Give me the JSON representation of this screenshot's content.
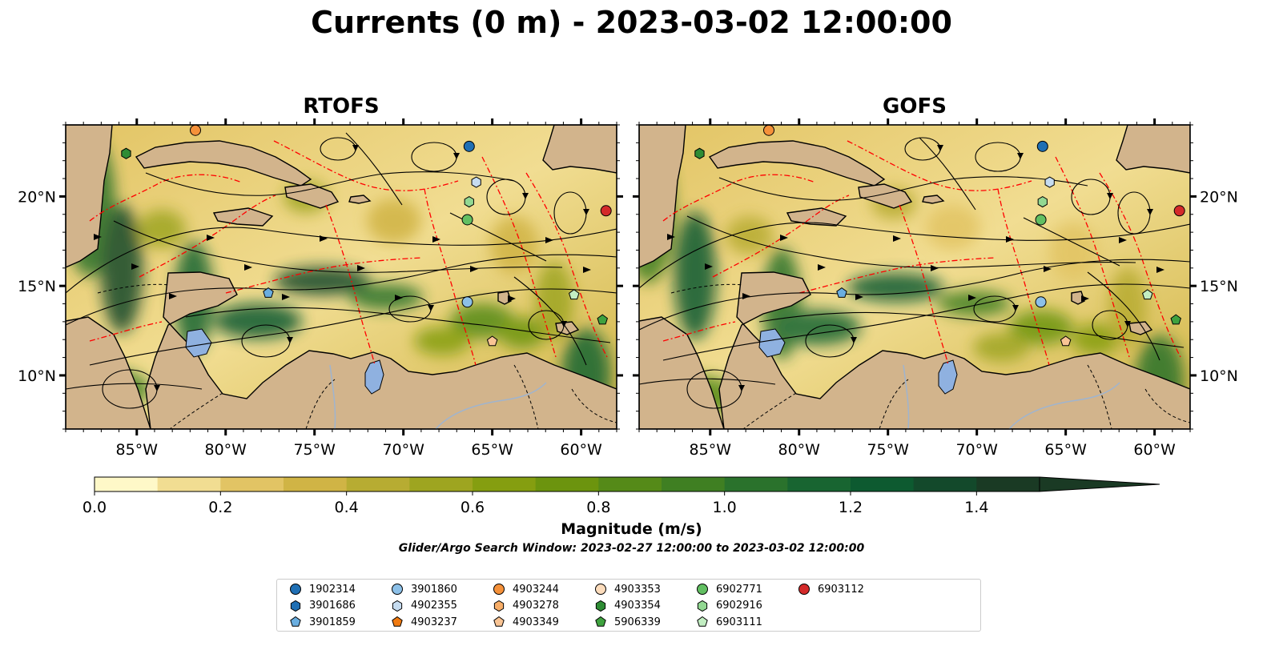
{
  "title": "Currents (0 m) - 2023-03-02 12:00:00",
  "panels": [
    {
      "id": "rtofs",
      "title": "RTOFS"
    },
    {
      "id": "gofs",
      "title": "GOFS"
    }
  ],
  "map_extent": {
    "lon": [
      -89.0,
      -58.0
    ],
    "lat": [
      7.0,
      24.0
    ]
  },
  "lon_ticks": [
    {
      "value": -85,
      "label": "85°W"
    },
    {
      "value": -80,
      "label": "80°W"
    },
    {
      "value": -75,
      "label": "75°W"
    },
    {
      "value": -70,
      "label": "70°W"
    },
    {
      "value": -65,
      "label": "65°W"
    },
    {
      "value": -60,
      "label": "60°W"
    }
  ],
  "lat_ticks": [
    {
      "value": 10,
      "label": "10°N"
    },
    {
      "value": 15,
      "label": "15°N"
    },
    {
      "value": 20,
      "label": "20°N"
    }
  ],
  "colors": {
    "land": "#d2b48c",
    "lake": "#8fb1e0",
    "eez_line": "#ff0000",
    "streamline": "#000000"
  },
  "colorbar": {
    "label": "Magnitude (m/s)",
    "min": 0.0,
    "max": 1.5,
    "step": 0.1,
    "extend": "max",
    "colors": [
      "#fef8c8",
      "#f1dd92",
      "#e2c464",
      "#d0b445",
      "#b7ac32",
      "#9ea520",
      "#859e10",
      "#6c940e",
      "#558a18",
      "#3f7f22",
      "#2a722c",
      "#186531",
      "#0d5a30",
      "#13492b",
      "#1a3a24"
    ],
    "ticks": [
      {
        "value": 0.0,
        "label": "0.0"
      },
      {
        "value": 0.2,
        "label": "0.2"
      },
      {
        "value": 0.4,
        "label": "0.4"
      },
      {
        "value": 0.6,
        "label": "0.6"
      },
      {
        "value": 0.8,
        "label": "0.8"
      },
      {
        "value": 1.0,
        "label": "1.0"
      },
      {
        "value": 1.2,
        "label": "1.2"
      },
      {
        "value": 1.4,
        "label": "1.4"
      }
    ]
  },
  "search_window": "Glider/Argo Search Window: 2023-02-27 12:00:00 to 2023-03-02 12:00:00",
  "legend": [
    {
      "label": "1902314",
      "marker": "circle",
      "color": "#1f6fb4"
    },
    {
      "label": "3901686",
      "marker": "hexagon",
      "color": "#1f6fb4"
    },
    {
      "label": "3901859",
      "marker": "pentagon",
      "color": "#6aaee0"
    },
    {
      "label": "3901860",
      "marker": "circle",
      "color": "#8cc0e8"
    },
    {
      "label": "4902355",
      "marker": "hexagon",
      "color": "#c6dcf0"
    },
    {
      "label": "4903237",
      "marker": "pentagon",
      "color": "#f07a10"
    },
    {
      "label": "4903244",
      "marker": "circle",
      "color": "#f5913a"
    },
    {
      "label": "4903278",
      "marker": "hexagon",
      "color": "#f8ae68"
    },
    {
      "label": "4903349",
      "marker": "pentagon",
      "color": "#f9c494"
    },
    {
      "label": "4903353",
      "marker": "circle",
      "color": "#fcdcbc"
    },
    {
      "label": "4903354",
      "marker": "hexagon",
      "color": "#2e8c34"
    },
    {
      "label": "5906339",
      "marker": "pentagon",
      "color": "#3fa23f"
    },
    {
      "label": "6902771",
      "marker": "circle",
      "color": "#62bf62"
    },
    {
      "label": "6902916",
      "marker": "hexagon",
      "color": "#92d892"
    },
    {
      "label": "6903111",
      "marker": "pentagon",
      "color": "#c2eec2"
    },
    {
      "label": "6903112",
      "marker": "circle",
      "color": "#d42a2a"
    }
  ],
  "floats": [
    {
      "id": "4903244",
      "lon": -81.7,
      "lat": 23.7
    },
    {
      "id": "1902314",
      "lon": -66.3,
      "lat": 22.8
    },
    {
      "id": "4902355",
      "lon": -65.9,
      "lat": 20.8
    },
    {
      "id": "6902916",
      "lon": -66.3,
      "lat": 19.7
    },
    {
      "id": "6902771",
      "lon": -66.4,
      "lat": 18.7
    },
    {
      "id": "6903112",
      "lon": -58.6,
      "lat": 19.2
    },
    {
      "id": "4903354",
      "lon": -85.6,
      "lat": 22.4
    },
    {
      "id": "3901859",
      "lon": -77.6,
      "lat": 14.6
    },
    {
      "id": "3901860",
      "lon": -66.4,
      "lat": 14.1
    },
    {
      "id": "6903111",
      "lon": -60.4,
      "lat": 14.5
    },
    {
      "id": "5906339",
      "lon": -58.8,
      "lat": 13.1
    },
    {
      "id": "4903349",
      "lon": -65.0,
      "lat": 11.9
    }
  ]
}
